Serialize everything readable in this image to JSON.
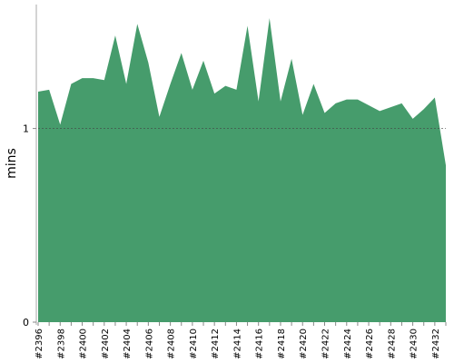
{
  "chart_data": {
    "type": "area",
    "y_label": "mins",
    "categories": [
      "#2396",
      null,
      "#2398",
      null,
      "#2400",
      null,
      "#2402",
      null,
      "#2404",
      null,
      "#2406",
      null,
      "#2408",
      null,
      "#2410",
      null,
      "#2412",
      null,
      "#2414",
      null,
      "#2416",
      null,
      "#2418",
      null,
      "#2420",
      null,
      "#2422",
      null,
      "#2424",
      null,
      "#2426",
      null,
      "#2428",
      null,
      "#2430",
      null,
      "#2432",
      null
    ],
    "values": [
      1.19,
      1.2,
      1.02,
      1.23,
      1.26,
      1.26,
      1.25,
      1.48,
      1.23,
      1.54,
      1.34,
      1.06,
      1.23,
      1.39,
      1.2,
      1.35,
      1.18,
      1.22,
      1.2,
      1.53,
      1.14,
      1.57,
      1.14,
      1.36,
      1.07,
      1.23,
      1.08,
      1.13,
      1.15,
      1.15,
      1.12,
      1.09,
      1.11,
      1.13,
      1.05,
      1.1,
      1.16,
      0.81
    ],
    "color": "#469c6c",
    "ylim": [
      0,
      1.64
    ],
    "yticks": [
      0,
      1
    ],
    "grid": true
  }
}
